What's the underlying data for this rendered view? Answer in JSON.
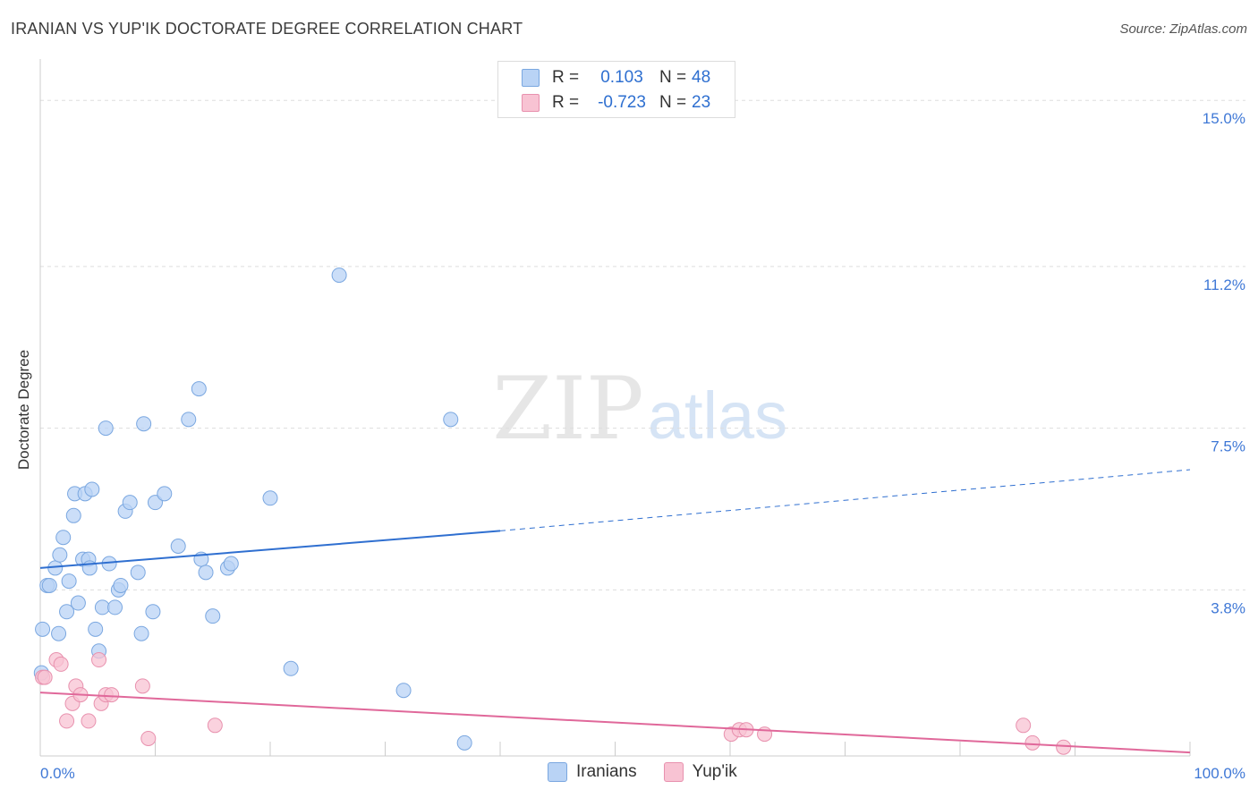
{
  "title": "IRANIAN VS YUP'IK DOCTORATE DEGREE CORRELATION CHART",
  "source": "Source: ZipAtlas.com",
  "watermark": {
    "zip": "ZIP",
    "atlas": "atlas"
  },
  "legend": {
    "rows": [
      {
        "r_label": "R =",
        "r_value": "0.103",
        "n_label": "N =",
        "n_value": "48"
      },
      {
        "r_label": "R =",
        "r_value": "-0.723",
        "n_label": "N =",
        "n_value": "23"
      }
    ]
  },
  "bottom_legend": [
    "Iranians",
    "Yup'ik"
  ],
  "colors": {
    "blue_fill": "#b9d3f5",
    "blue_stroke": "#7aa7e0",
    "blue_line": "#2f6fd0",
    "pink_fill": "#f8c3d3",
    "pink_stroke": "#e891ae",
    "pink_line": "#e0689a",
    "tick_label": "#3f78d6",
    "grid": "#dddddd"
  },
  "chart_data": {
    "type": "scatter",
    "title": "IRANIAN VS YUP'IK DOCTORATE DEGREE CORRELATION CHART",
    "xlabel": "",
    "ylabel": "Doctorate Degree",
    "xlim": [
      0,
      100
    ],
    "ylim": [
      0,
      15.7
    ],
    "x_tick_labels": [
      {
        "value": 0,
        "label": "0.0%"
      },
      {
        "value": 100,
        "label": "100.0%"
      }
    ],
    "y_ticks": [
      {
        "value": 3.8,
        "label": "3.8%"
      },
      {
        "value": 7.5,
        "label": "7.5%"
      },
      {
        "value": 11.2,
        "label": "11.2%"
      },
      {
        "value": 15.0,
        "label": "15.0%"
      }
    ],
    "series": [
      {
        "name": "Iranians",
        "color": "#b9d3f5",
        "points": [
          [
            0.1,
            1.9
          ],
          [
            0.2,
            2.9
          ],
          [
            0.6,
            3.9
          ],
          [
            0.8,
            3.9
          ],
          [
            1.3,
            4.3
          ],
          [
            1.6,
            2.8
          ],
          [
            1.7,
            4.6
          ],
          [
            2.0,
            5.0
          ],
          [
            2.3,
            3.3
          ],
          [
            2.5,
            4.0
          ],
          [
            2.9,
            5.5
          ],
          [
            3.0,
            6.0
          ],
          [
            3.3,
            3.5
          ],
          [
            3.7,
            4.5
          ],
          [
            3.9,
            6.0
          ],
          [
            4.2,
            4.5
          ],
          [
            4.3,
            4.3
          ],
          [
            4.5,
            6.1
          ],
          [
            4.8,
            2.9
          ],
          [
            5.1,
            2.4
          ],
          [
            5.4,
            3.4
          ],
          [
            5.7,
            7.5
          ],
          [
            6.0,
            4.4
          ],
          [
            6.5,
            3.4
          ],
          [
            6.8,
            3.8
          ],
          [
            7.0,
            3.9
          ],
          [
            7.4,
            5.6
          ],
          [
            7.8,
            5.8
          ],
          [
            8.5,
            4.2
          ],
          [
            8.8,
            2.8
          ],
          [
            9.0,
            7.6
          ],
          [
            9.8,
            3.3
          ],
          [
            10.0,
            5.8
          ],
          [
            10.8,
            6.0
          ],
          [
            12.0,
            4.8
          ],
          [
            12.9,
            7.7
          ],
          [
            13.8,
            8.4
          ],
          [
            14.0,
            4.5
          ],
          [
            14.4,
            4.2
          ],
          [
            15.0,
            3.2
          ],
          [
            16.3,
            4.3
          ],
          [
            16.6,
            4.4
          ],
          [
            20.0,
            5.9
          ],
          [
            21.8,
            2.0
          ],
          [
            26.0,
            11.0
          ],
          [
            31.6,
            1.5
          ],
          [
            35.7,
            7.7
          ],
          [
            36.9,
            0.3
          ]
        ]
      },
      {
        "name": "Yup'ik",
        "color": "#f8c3d3",
        "points": [
          [
            0.2,
            1.8
          ],
          [
            0.4,
            1.8
          ],
          [
            1.4,
            2.2
          ],
          [
            1.8,
            2.1
          ],
          [
            2.3,
            0.8
          ],
          [
            2.8,
            1.2
          ],
          [
            3.1,
            1.6
          ],
          [
            3.5,
            1.4
          ],
          [
            4.2,
            0.8
          ],
          [
            5.1,
            2.2
          ],
          [
            5.3,
            1.2
          ],
          [
            5.7,
            1.4
          ],
          [
            6.2,
            1.4
          ],
          [
            8.9,
            1.6
          ],
          [
            9.4,
            0.4
          ],
          [
            15.2,
            0.7
          ],
          [
            60.1,
            0.5
          ],
          [
            60.8,
            0.6
          ],
          [
            61.4,
            0.6
          ],
          [
            63.0,
            0.5
          ],
          [
            85.5,
            0.7
          ],
          [
            86.3,
            0.3
          ],
          [
            89.0,
            0.2
          ]
        ]
      }
    ],
    "trendlines": [
      {
        "series": "Iranians",
        "x_start": 0,
        "y_start": 4.3,
        "x_solid_end": 40,
        "y_solid_end": 5.15,
        "x_end": 100,
        "y_end": 6.55,
        "dashed_after_solid": true
      },
      {
        "series": "Yup'ik",
        "x_start": 0,
        "y_start": 1.45,
        "x_end": 100,
        "y_end": 0.08
      }
    ]
  }
}
